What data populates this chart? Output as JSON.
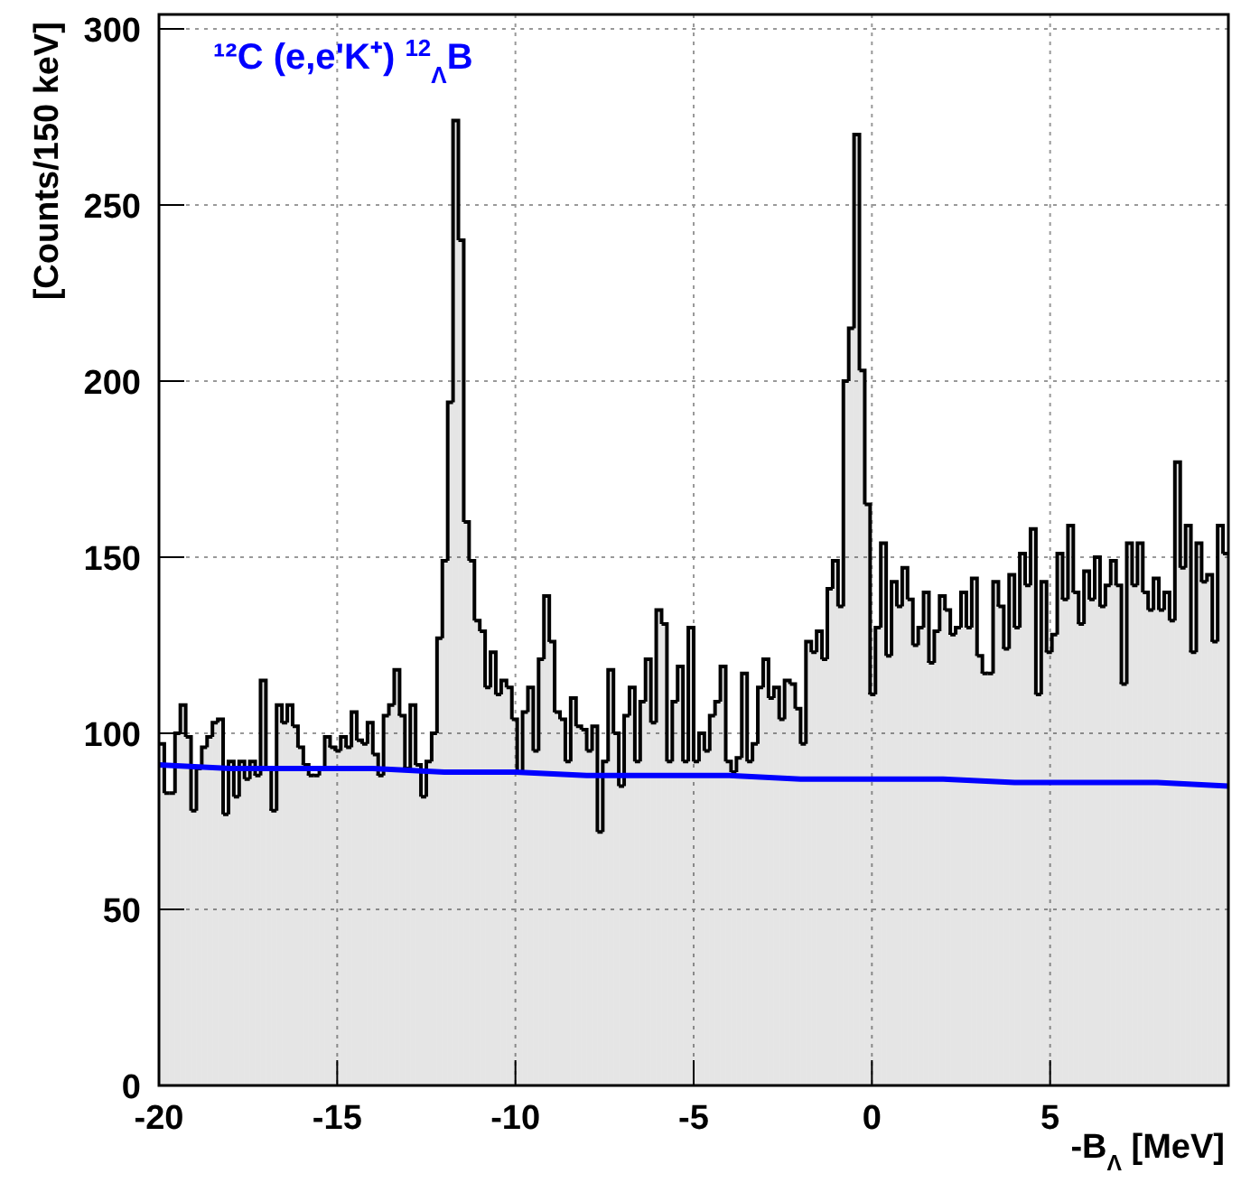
{
  "chart_data": {
    "type": "histogram",
    "title": "¹²C (e,e'K⁺) $^{12}$$_{Λ}$B",
    "xlabel": "-B$_{Λ}$ [MeV]",
    "ylabel": "[Counts/150 keV]",
    "bins": [
      -20,
      -19.85,
      -19.7,
      -19.55,
      -19.4,
      -19.25,
      -19.1,
      -18.95,
      -18.8,
      -18.65,
      -18.5,
      -18.35,
      -18.2,
      -18.05,
      -17.9,
      -17.75,
      -17.6,
      -17.45,
      -17.3,
      -17.15,
      -17,
      -16.85,
      -16.7,
      -16.55,
      -16.4,
      -16.25,
      -16.1,
      -15.95,
      -15.8,
      -15.65,
      -15.5,
      -15.35,
      -15.2,
      -15.05,
      -14.9,
      -14.75,
      -14.6,
      -14.45,
      -14.3,
      -14.15,
      -14,
      -13.85,
      -13.7,
      -13.55,
      -13.4,
      -13.25,
      -13.1,
      -12.95,
      -12.8,
      -12.65,
      -12.5,
      -12.35,
      -12.2,
      -12.05,
      -11.9,
      -11.75,
      -11.6,
      -11.45,
      -11.3,
      -11.15,
      -11,
      -10.85,
      -10.7,
      -10.55,
      -10.4,
      -10.25,
      -10.1,
      -9.95,
      -9.8,
      -9.65,
      -9.5,
      -9.35,
      -9.2,
      -9.05,
      -8.9,
      -8.75,
      -8.6,
      -8.45,
      -8.3,
      -8.15,
      -8,
      -7.85,
      -7.7,
      -7.55,
      -7.4,
      -7.25,
      -7.1,
      -6.95,
      -6.8,
      -6.65,
      -6.5,
      -6.35,
      -6.2,
      -6.05,
      -5.9,
      -5.75,
      -5.6,
      -5.45,
      -5.3,
      -5.15,
      -5,
      -4.85,
      -4.7,
      -4.55,
      -4.4,
      -4.25,
      -4.1,
      -3.95,
      -3.8,
      -3.65,
      -3.5,
      -3.35,
      -3.2,
      -3.05,
      -2.9,
      -2.75,
      -2.6,
      -2.45,
      -2.3,
      -2.15,
      -2,
      -1.85,
      -1.7,
      -1.55,
      -1.4,
      -1.25,
      -1.1,
      -0.95,
      -0.8,
      -0.65,
      -0.5,
      -0.35,
      -0.2,
      -0.05,
      0.1,
      0.25,
      0.4,
      0.55,
      0.7,
      0.85,
      1,
      1.15,
      1.3,
      1.45,
      1.6,
      1.75,
      1.9,
      2.05,
      2.2,
      2.35,
      2.5,
      2.65,
      2.8,
      2.95,
      3.1,
      3.25,
      3.4,
      3.55,
      3.7,
      3.85,
      4,
      4.15,
      4.3,
      4.45,
      4.6,
      4.75,
      4.9,
      5.05,
      5.2,
      5.35,
      5.5,
      5.65,
      5.8,
      5.95,
      6.1,
      6.25,
      6.4,
      6.55,
      6.7,
      6.85,
      7,
      7.15,
      7.3,
      7.45,
      7.6,
      7.75,
      7.9,
      8.05,
      8.2,
      8.35,
      8.5,
      8.65,
      8.8,
      8.95,
      9.1,
      9.25,
      9.4,
      9.55,
      9.7,
      9.85,
      10
    ],
    "xlim": [
      -20,
      10
    ],
    "ylim": [
      0,
      300
    ],
    "xticks": [
      -20,
      -15,
      -10,
      -5,
      0,
      5
    ],
    "yticks": [
      0,
      50,
      100,
      150,
      200,
      250,
      300
    ],
    "grid": true,
    "series": [
      {
        "type": "histogram",
        "color": "#000000",
        "values": [
          97,
          83,
          83,
          100,
          108,
          99,
          78,
          90,
          96,
          99,
          103,
          104,
          77,
          92,
          82,
          92,
          87,
          92,
          88,
          115,
          90,
          78,
          108,
          103,
          108,
          102,
          96,
          91,
          88,
          88,
          90,
          99,
          96,
          95,
          99,
          96,
          106,
          98,
          97,
          103,
          94,
          88,
          105,
          108,
          118,
          105,
          90,
          108,
          91,
          82,
          92,
          100,
          127,
          149,
          194,
          274,
          240,
          160,
          149,
          132,
          129,
          113,
          123,
          111,
          115,
          113,
          104,
          89,
          106,
          113,
          95,
          121,
          139,
          126,
          106,
          104,
          92,
          110,
          102,
          101,
          95,
          102,
          72,
          92,
          118,
          100,
          85,
          105,
          113,
          92,
          109,
          121,
          103,
          135,
          131,
          92,
          109,
          119,
          92,
          130,
          92,
          100,
          95,
          105,
          109,
          119,
          92,
          89,
          93,
          117,
          92,
          97,
          113,
          121,
          110,
          113,
          104,
          115,
          114,
          107,
          97,
          126,
          123,
          129,
          121,
          141,
          149,
          136,
          200,
          215,
          270,
          203,
          165,
          111,
          130,
          154,
          122,
          143,
          136,
          147,
          138,
          125,
          130,
          140,
          120,
          129,
          139,
          135,
          128,
          130,
          140,
          130,
          144,
          122,
          117,
          117,
          143,
          136,
          124,
          145,
          130,
          151,
          142,
          158,
          111,
          143,
          123,
          128,
          151,
          138,
          159,
          140,
          131,
          146,
          138,
          150,
          136,
          142,
          149,
          142,
          114,
          154,
          142,
          154,
          140,
          135,
          144,
          135,
          140,
          132,
          177,
          147,
          159,
          123,
          154,
          143,
          145,
          126,
          159,
          151
        ]
      },
      {
        "type": "line",
        "color": "#0000ff",
        "marker": "none",
        "x": [
          -20,
          -18,
          -16,
          -14,
          -12,
          -10,
          -8,
          -6,
          -4,
          -2,
          0,
          2,
          4,
          6,
          8,
          10
        ],
        "values": [
          91,
          90,
          90,
          90,
          89,
          89,
          88,
          88,
          88,
          87,
          87,
          87,
          86,
          86,
          86,
          85
        ]
      }
    ]
  }
}
